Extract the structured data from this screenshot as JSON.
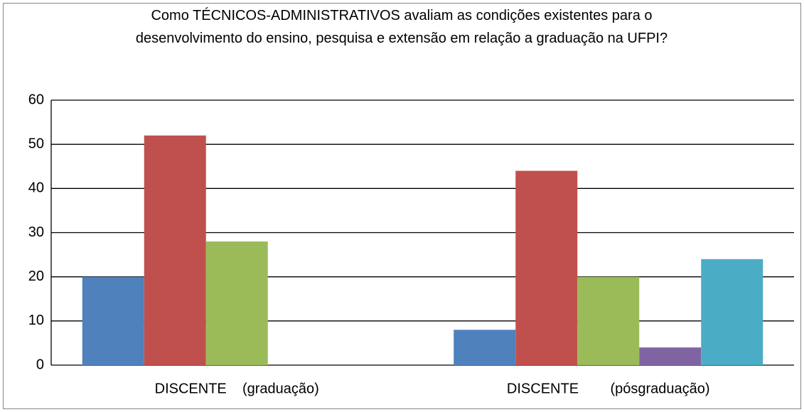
{
  "chart_data": {
    "type": "bar",
    "title": "Como TÉCNICOS-ADMINISTRATIVOS avaliam as condições existentes para o desenvolvimento do ensino, pesquisa e extensão em relação a graduação na UFPI?",
    "categories": [
      "DISCENTE    (graduação)",
      "DISCENTE        (pósgraduação)"
    ],
    "series": [
      {
        "color": "#4f81bd",
        "values": [
          20,
          8
        ]
      },
      {
        "color": "#c0504d",
        "values": [
          52,
          44
        ]
      },
      {
        "color": "#9bbb59",
        "values": [
          28,
          20
        ]
      },
      {
        "color": "#8064a2",
        "values": [
          0,
          4
        ]
      },
      {
        "color": "#4bacc6",
        "values": [
          0,
          24
        ]
      }
    ],
    "ylim": [
      0,
      60
    ],
    "yticks": [
      0,
      10,
      20,
      30,
      40,
      50,
      60
    ],
    "grid": true
  }
}
